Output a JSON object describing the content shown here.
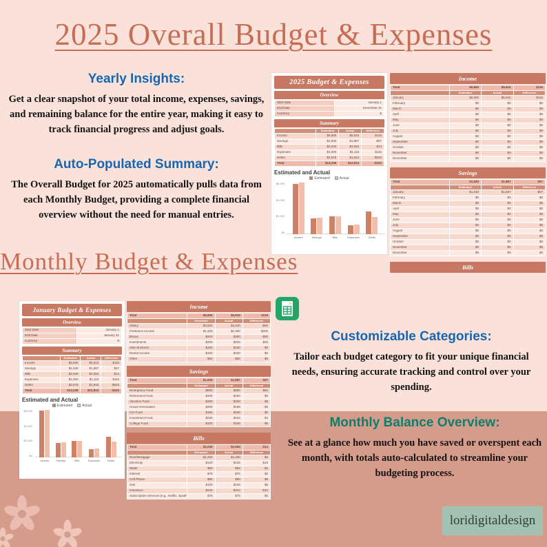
{
  "page": {
    "title": "2025 Overall Budget & Expenses",
    "monthly_title": "Monthly Budget & Expenses",
    "watermark": "loridigitaldesign"
  },
  "colors": {
    "background": "#FAE2DA",
    "bottom_band": "#D69C8B",
    "terracotta_title": "#C76D55",
    "blue_heading": "#1766B1",
    "teal_heading": "#0E7E6D",
    "table_header": "#C77963",
    "bar_estimated": "#D08165",
    "bar_actual": "#F2BDA9",
    "watermark_bg": "#A3C2B3",
    "sheets_green": "#23A566"
  },
  "sections": {
    "yearly_insights": {
      "heading": "Yearly Insights:",
      "body": "Get a clear snapshot of your total income, expenses, savings, and remaining balance for the entire year, making it easy to track financial progress and adjust goals."
    },
    "auto_summary": {
      "heading": "Auto-Populated Summary:",
      "body": "The Overall Budget for 2025 automatically pulls data from each Monthly Budget, providing a complete financial overview without the need for manual entries."
    },
    "customizable": {
      "heading": "Customizable Categories:",
      "body": "Tailor each budget category to fit your unique financial needs, ensuring accurate tracking and control over your spending."
    },
    "balance": {
      "heading": "Monthly Balance Overview:",
      "body": "See at a glance how much you have saved or overspent each month, with totals auto-calculated to streamline your budgeting process."
    }
  },
  "sheet_2025": {
    "title": "2025 Budget & Expenses",
    "overview": {
      "title": "Overview",
      "rows": [
        [
          "Start Date",
          "January 1"
        ],
        [
          "End Date",
          "December 31"
        ],
        [
          "Currency",
          "$"
        ]
      ]
    },
    "summary": {
      "title": "Summary",
      "header_row": [
        [
          "",
          "Estimated",
          "Actual",
          "Difference"
        ]
      ],
      "rows": [
        [
          "Income",
          "$5,800",
          "$5,915",
          "$115"
        ],
        [
          "Savings",
          "$1,830",
          "$1,887",
          "$57"
        ],
        [
          "Bills",
          "$2,040",
          "$2,054",
          "$14"
        ],
        [
          "Expenses",
          "$1,000",
          "$1,115",
          "$115"
        ],
        [
          "Debts",
          "$2,575",
          "$1,942",
          "-$633"
        ],
        [
          "Total",
          "$13,245",
          "$12,913",
          "-$332"
        ]
      ]
    }
  },
  "sheet_january": {
    "title": "January Budget & Expenses",
    "overview": {
      "title": "Overview",
      "rows": [
        [
          "Start Date",
          "January 1"
        ],
        [
          "End Date",
          "January 31"
        ],
        [
          "Currency",
          "$"
        ]
      ]
    },
    "summary": {
      "title": "Summary",
      "header_row": [
        [
          "",
          "Estimated",
          "Actual",
          "Difference"
        ]
      ],
      "rows": [
        [
          "Income",
          "$5,800",
          "$5,915",
          "$115"
        ],
        [
          "Savings",
          "$1,830",
          "$1,887",
          "$57"
        ],
        [
          "Bills",
          "$2,040",
          "$2,054",
          "$14"
        ],
        [
          "Expenses",
          "$1,000",
          "$1,115",
          "$115"
        ],
        [
          "Debts",
          "$2,575",
          "$1,942",
          "-$633"
        ],
        [
          "Total",
          "$13,245",
          "$12,913",
          "-$332"
        ]
      ]
    }
  },
  "month_tables": {
    "income": {
      "title": "Income",
      "total": [
        [
          "Total",
          "$5,800",
          "$5,915",
          "$115"
        ]
      ],
      "header_row": [
        [
          "",
          "Estimated",
          "Actual",
          "Difference"
        ]
      ],
      "rows": [
        [
          "January",
          "$5,800",
          "$5,915",
          "$115"
        ],
        [
          "February",
          "$0",
          "$0",
          "$0"
        ],
        [
          "March",
          "$0",
          "$0",
          "$0"
        ],
        [
          "April",
          "$0",
          "$0",
          "$0"
        ],
        [
          "May",
          "$0",
          "$0",
          "$0"
        ],
        [
          "June",
          "$0",
          "$0",
          "$0"
        ],
        [
          "July",
          "$0",
          "$0",
          "$0"
        ],
        [
          "August",
          "$0",
          "$0",
          "$0"
        ],
        [
          "September",
          "$0",
          "$0",
          "$0"
        ],
        [
          "October",
          "$0",
          "$0",
          "$0"
        ],
        [
          "November",
          "$0",
          "$0",
          "$0"
        ],
        [
          "December",
          "$0",
          "$0",
          "$0"
        ]
      ]
    },
    "savings": {
      "title": "Savings",
      "total": [
        [
          "Total",
          "$1,830",
          "$1,887",
          "$57"
        ]
      ],
      "header_row": [
        [
          "",
          "Estimated",
          "Actual",
          "Difference"
        ]
      ],
      "rows": [
        [
          "January",
          "$1,830",
          "$1,887",
          "$57"
        ],
        [
          "February",
          "$0",
          "$0",
          "$0"
        ],
        [
          "March",
          "$0",
          "$0",
          "$0"
        ],
        [
          "April",
          "$0",
          "$0",
          "$0"
        ],
        [
          "May",
          "$0",
          "$0",
          "$0"
        ],
        [
          "June",
          "$0",
          "$0",
          "$0"
        ],
        [
          "July",
          "$0",
          "$0",
          "$0"
        ],
        [
          "August",
          "$0",
          "$0",
          "$0"
        ],
        [
          "September",
          "$0",
          "$0",
          "$0"
        ],
        [
          "October",
          "$0",
          "$0",
          "$0"
        ],
        [
          "November",
          "$0",
          "$0",
          "$0"
        ],
        [
          "December",
          "$0",
          "$0",
          "$0"
        ]
      ]
    },
    "bills_partial_title": "Bills"
  },
  "category_tables": {
    "income": {
      "title": "Income",
      "total": [
        [
          "Total",
          "$5,800",
          "$5,915",
          "$115"
        ]
      ],
      "header_row": [
        [
          "",
          "Estimated",
          "Actual",
          "Difference"
        ]
      ],
      "rows": [
        [
          "Salary",
          "$3,500",
          "$3,440",
          "-$60"
        ],
        [
          "Freelance Income",
          "$1,400",
          "$1,600",
          "$200"
        ],
        [
          "Bonus",
          "$400",
          "$350",
          "-$50"
        ],
        [
          "Investments",
          "$200",
          "$225",
          "$25"
        ],
        [
          "Side Business",
          "$150",
          "$150",
          "$0"
        ],
        [
          "Rental Income",
          "$100",
          "$100",
          "$0"
        ],
        [
          "Other",
          "$50",
          "$50",
          "$0"
        ]
      ]
    },
    "savings": {
      "title": "Savings",
      "total": [
        [
          "Total",
          "$1,830",
          "$1,887",
          "$57"
        ]
      ],
      "header_row": [
        [
          "",
          "Estimated",
          "Actual",
          "Difference"
        ]
      ],
      "rows": [
        [
          "Emergency Fund",
          "$500",
          "$550",
          "$50"
        ],
        [
          "Retirement Fund",
          "$400",
          "$400",
          "$0"
        ],
        [
          "Vacation Fund",
          "$250",
          "$258",
          "$8"
        ],
        [
          "House Renovation",
          "$200",
          "$195",
          "-$5"
        ],
        [
          "Car Fund",
          "$150",
          "$150",
          "$0"
        ],
        [
          "Investment Fund",
          "$230",
          "$234",
          "$4"
        ],
        [
          "College Fund",
          "$100",
          "$100",
          "$0"
        ]
      ]
    },
    "bills": {
      "title": "Bills",
      "total": [
        [
          "Total",
          "$2,040",
          "$2,054",
          "$14"
        ]
      ],
      "header_row": [
        [
          "",
          "Estimated",
          "Actual",
          "Difference"
        ]
      ],
      "rows": [
        [
          "Rent/Mortgage",
          "$1,200",
          "$1,200",
          "$0"
        ],
        [
          "Electricity",
          "$120",
          "$135",
          "$15"
        ],
        [
          "Water",
          "$60",
          "$58",
          "-$2"
        ],
        [
          "Internet",
          "$75",
          "$75",
          "$0"
        ],
        [
          "Cell Phone",
          "$90",
          "$95",
          "$5"
        ],
        [
          "Gas",
          "$100",
          "$106",
          "$6"
        ],
        [
          "Insurance",
          "$320",
          "$310",
          "-$10"
        ],
        [
          "Subscription Services (e.g., Netflix, Spotify)",
          "$75",
          "$75",
          "$0"
        ]
      ]
    }
  },
  "chart_data": [
    {
      "type": "bar",
      "title": "Estimated and Actual",
      "categories": [
        "Income",
        "Savings",
        "Bills",
        "Expenses",
        "Debts"
      ],
      "series": [
        {
          "name": "Estimated",
          "color": "#D08165",
          "values": [
            5800,
            1830,
            2040,
            1000,
            2575
          ]
        },
        {
          "name": "Actual",
          "color": "#F2BDA9",
          "values": [
            5915,
            1887,
            2054,
            1115,
            1942
          ]
        }
      ],
      "ylim": [
        0,
        6000
      ],
      "ytick_labels": [
        "$0",
        "$2,000",
        "$4,000",
        "$6,000"
      ],
      "legend_position": "top",
      "grid": false
    },
    {
      "type": "bar",
      "title": "Estimated and Actual",
      "categories": [
        "Income",
        "Savings",
        "Bills",
        "Expenses",
        "Debts"
      ],
      "series": [
        {
          "name": "Estimated",
          "color": "#D08165",
          "values": [
            5800,
            1830,
            2040,
            1000,
            2575
          ]
        },
        {
          "name": "Actual",
          "color": "#F2BDA9",
          "values": [
            5915,
            1887,
            2054,
            1115,
            1942
          ]
        }
      ],
      "ylim": [
        0,
        6000
      ],
      "ytick_labels": [
        "$0",
        "$2,000",
        "$4,000",
        "$6,000"
      ],
      "legend_position": "top",
      "grid": false
    }
  ]
}
